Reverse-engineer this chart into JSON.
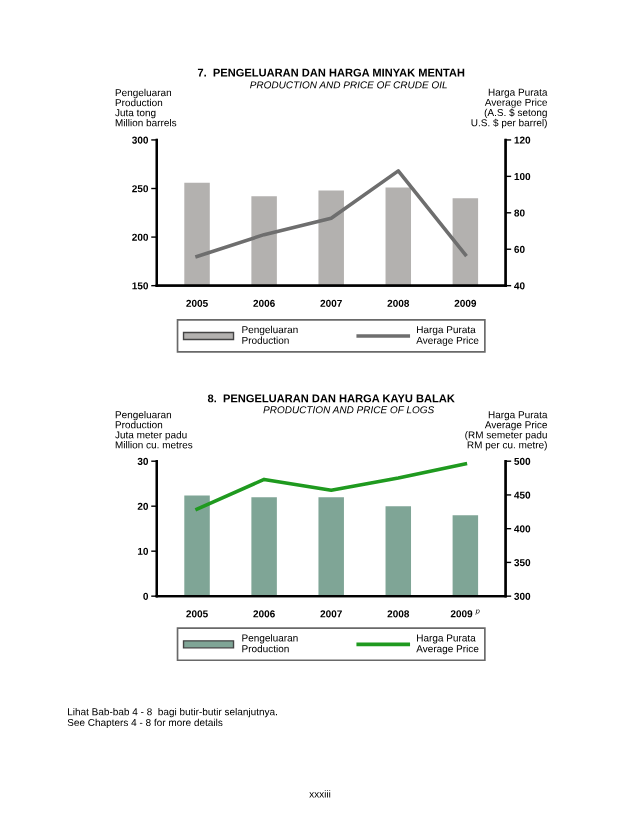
{
  "chart_data": [
    {
      "type": "bar",
      "title": "7.  PENGELUARAN DAN HARGA MINYAK MENTAH",
      "subtitle": "PRODUCTION AND PRICE OF CRUDE OIL",
      "ylabel": "Pengeluaran\nProduction\nJuta tong\nMillion barrels",
      "y2label": "Harga Purata\nAverage Price\n(A.S. $ setong\nU.S. $ per barrel)",
      "categories": [
        "2005",
        "2006",
        "2007",
        "2008",
        "2009"
      ],
      "series": [
        {
          "name": "Pengeluaran\nProduction",
          "color": "#b3b1af",
          "values": [
            256,
            242,
            248,
            251,
            240
          ]
        },
        {
          "name": "Harga Purata\nAverage Price",
          "type": "line",
          "axis": "y2",
          "color": "#6e6e6e",
          "values": [
            56,
            68,
            77,
            103,
            57
          ]
        }
      ],
      "ylim": [
        150,
        300
      ],
      "yticks": [
        150,
        200,
        250,
        300
      ],
      "y2lim": [
        40,
        120
      ],
      "y2ticks": [
        40,
        60,
        80,
        100,
        120
      ],
      "legend": "bottom",
      "grid": false,
      "marker": "none"
    },
    {
      "type": "bar",
      "title": "8.  PENGELUARAN DAN HARGA KAYU BALAK",
      "subtitle": "PRODUCTION AND PRICE OF LOGS",
      "ylabel": "Pengeluaran\nProduction\nJuta meter padu\nMillion cu. metres",
      "y2label": "Harga Purata\nAverage Price\n(RM semeter padu\nRM per cu. metre)",
      "categories": [
        "2005",
        "2006",
        "2007",
        "2008",
        "2009 $^{p}$"
      ],
      "series": [
        {
          "name": "Pengeluaran\nProduction",
          "color": "#7fa596",
          "values": [
            22.4,
            22,
            22,
            20,
            18
          ]
        },
        {
          "name": "Harga Purata\nAverage Price",
          "type": "line",
          "axis": "y2",
          "color": "#1f9a1f",
          "values": [
            429,
            473,
            457,
            475,
            496
          ]
        }
      ],
      "ylim": [
        0,
        30
      ],
      "yticks": [
        0,
        10,
        20,
        30
      ],
      "y2lim": [
        300,
        500
      ],
      "y2ticks": [
        300,
        350,
        400,
        450,
        500
      ],
      "legend": "bottom",
      "grid": false,
      "marker": "none",
      "annotations": [
        "Lihat Bab-bab 4 - 8  bagi butir-butir selanjutnya.\nSee Chapters 4 - 8 for more details",
        "xxxiii"
      ]
    }
  ]
}
